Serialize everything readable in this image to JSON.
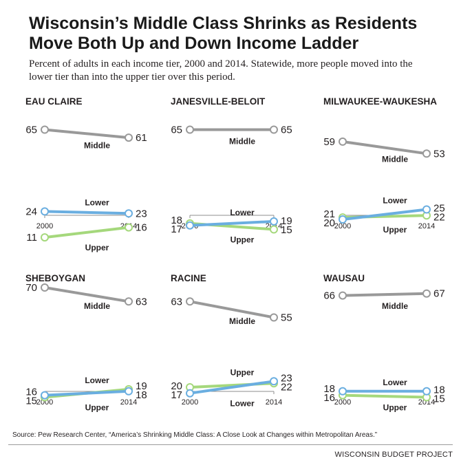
{
  "title": "Wisconsin’s Middle Class Shrinks as Residents Move Both Up and Down Income Ladder",
  "subtitle": "Percent of adults in each income tier, 2000 and 2014. Statewide, more people moved into the lower tier than into the upper tier over this period.",
  "source": "Source: Pew Research Center, “America’s Shrinking Middle Class: A Close Look at Changes within Metropolitan Areas.”",
  "credit": "WISCONSIN BUDGET PROJECT",
  "colors": {
    "middle": "#999999",
    "lower": "#6aaee0",
    "upper": "#a5d87c",
    "axis": "#8c8c8c"
  },
  "chart_data": [
    {
      "type": "line",
      "title": "EAU CLAIRE",
      "x": [
        "2000",
        "2014"
      ],
      "series": [
        {
          "name": "Middle",
          "values": [
            65,
            61
          ]
        },
        {
          "name": "Lower",
          "values": [
            24,
            23
          ]
        },
        {
          "name": "Upper",
          "values": [
            11,
            16
          ]
        }
      ]
    },
    {
      "type": "line",
      "title": "JANESVILLE-BELOIT",
      "x": [
        "2000",
        "2014"
      ],
      "series": [
        {
          "name": "Middle",
          "values": [
            65,
            65
          ]
        },
        {
          "name": "Lower",
          "values": [
            17,
            19
          ]
        },
        {
          "name": "Upper",
          "values": [
            18,
            15
          ]
        }
      ]
    },
    {
      "type": "line",
      "title": "MILWAUKEE-WAUKESHA",
      "x": [
        "2000",
        "2014"
      ],
      "series": [
        {
          "name": "Middle",
          "values": [
            59,
            53
          ]
        },
        {
          "name": "Lower",
          "values": [
            20,
            25
          ]
        },
        {
          "name": "Upper",
          "values": [
            21,
            22
          ]
        }
      ]
    },
    {
      "type": "line",
      "title": "SHEBOYGAN",
      "x": [
        "2000",
        "2014"
      ],
      "series": [
        {
          "name": "Middle",
          "values": [
            70,
            63
          ]
        },
        {
          "name": "Lower",
          "values": [
            16,
            18
          ]
        },
        {
          "name": "Upper",
          "values": [
            15,
            19
          ]
        }
      ]
    },
    {
      "type": "line",
      "title": "RACINE",
      "x": [
        "2000",
        "2014"
      ],
      "series": [
        {
          "name": "Middle",
          "values": [
            63,
            55
          ]
        },
        {
          "name": "Lower",
          "values": [
            17,
            23
          ]
        },
        {
          "name": "Upper",
          "values": [
            20,
            22
          ]
        }
      ]
    },
    {
      "type": "line",
      "title": "WAUSAU",
      "x": [
        "2000",
        "2014"
      ],
      "series": [
        {
          "name": "Middle",
          "values": [
            66,
            67
          ]
        },
        {
          "name": "Lower",
          "values": [
            18,
            18
          ]
        },
        {
          "name": "Upper",
          "values": [
            16,
            15
          ]
        }
      ]
    }
  ]
}
